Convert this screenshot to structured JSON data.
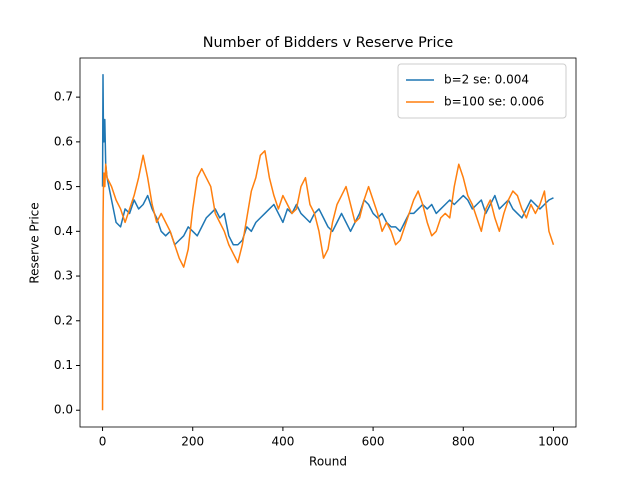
{
  "chart_data": {
    "type": "line",
    "title": "Number of Bidders v Reserve Price",
    "xlabel": "Round",
    "ylabel": "Reserve Price",
    "x": [
      0,
      1,
      2,
      3,
      5,
      7,
      10,
      20,
      30,
      40,
      50,
      60,
      70,
      80,
      90,
      100,
      110,
      120,
      130,
      140,
      150,
      160,
      170,
      180,
      190,
      200,
      210,
      220,
      230,
      240,
      250,
      260,
      270,
      280,
      290,
      300,
      310,
      320,
      330,
      340,
      350,
      360,
      370,
      380,
      390,
      400,
      410,
      420,
      430,
      440,
      450,
      460,
      470,
      480,
      490,
      500,
      510,
      520,
      530,
      540,
      550,
      560,
      570,
      580,
      590,
      600,
      610,
      620,
      630,
      640,
      650,
      660,
      670,
      680,
      690,
      700,
      710,
      720,
      730,
      740,
      750,
      760,
      770,
      780,
      790,
      800,
      810,
      820,
      830,
      840,
      850,
      860,
      870,
      880,
      890,
      900,
      910,
      920,
      930,
      940,
      950,
      960,
      970,
      980,
      990,
      1000
    ],
    "series": [
      {
        "name": "b=2 se: 0.004",
        "color": "#1f77b4",
        "values": [
          0.5,
          0.75,
          0.62,
          0.6,
          0.65,
          0.55,
          0.52,
          0.47,
          0.42,
          0.41,
          0.45,
          0.44,
          0.47,
          0.45,
          0.46,
          0.48,
          0.45,
          0.43,
          0.4,
          0.39,
          0.4,
          0.37,
          0.38,
          0.39,
          0.41,
          0.4,
          0.39,
          0.41,
          0.43,
          0.44,
          0.45,
          0.43,
          0.44,
          0.39,
          0.37,
          0.37,
          0.38,
          0.41,
          0.4,
          0.42,
          0.43,
          0.44,
          0.45,
          0.46,
          0.44,
          0.42,
          0.45,
          0.44,
          0.46,
          0.44,
          0.43,
          0.42,
          0.44,
          0.45,
          0.43,
          0.41,
          0.4,
          0.42,
          0.44,
          0.42,
          0.4,
          0.42,
          0.44,
          0.47,
          0.46,
          0.44,
          0.43,
          0.44,
          0.42,
          0.41,
          0.41,
          0.4,
          0.42,
          0.44,
          0.44,
          0.45,
          0.46,
          0.45,
          0.46,
          0.44,
          0.45,
          0.46,
          0.47,
          0.46,
          0.47,
          0.48,
          0.47,
          0.45,
          0.46,
          0.47,
          0.44,
          0.46,
          0.48,
          0.45,
          0.46,
          0.47,
          0.45,
          0.44,
          0.43,
          0.45,
          0.47,
          0.46,
          0.45,
          0.46,
          0.47,
          0.475
        ]
      },
      {
        "name": "b=100 se: 0.006",
        "color": "#ff7f0e",
        "values": [
          0,
          0.42,
          0.5,
          0.53,
          0.5,
          0.55,
          0.52,
          0.5,
          0.47,
          0.45,
          0.42,
          0.45,
          0.48,
          0.52,
          0.57,
          0.52,
          0.46,
          0.42,
          0.44,
          0.42,
          0.4,
          0.37,
          0.34,
          0.32,
          0.36,
          0.45,
          0.52,
          0.54,
          0.52,
          0.5,
          0.44,
          0.42,
          0.4,
          0.37,
          0.35,
          0.33,
          0.37,
          0.43,
          0.49,
          0.52,
          0.57,
          0.58,
          0.52,
          0.48,
          0.45,
          0.48,
          0.46,
          0.44,
          0.45,
          0.5,
          0.52,
          0.46,
          0.44,
          0.4,
          0.34,
          0.36,
          0.42,
          0.46,
          0.48,
          0.5,
          0.46,
          0.42,
          0.43,
          0.47,
          0.5,
          0.47,
          0.44,
          0.4,
          0.42,
          0.4,
          0.37,
          0.38,
          0.41,
          0.44,
          0.47,
          0.49,
          0.46,
          0.42,
          0.39,
          0.4,
          0.43,
          0.44,
          0.43,
          0.5,
          0.55,
          0.52,
          0.48,
          0.46,
          0.43,
          0.4,
          0.45,
          0.47,
          0.43,
          0.4,
          0.44,
          0.47,
          0.49,
          0.48,
          0.45,
          0.43,
          0.46,
          0.44,
          0.46,
          0.49,
          0.4,
          0.37
        ]
      }
    ],
    "xlim": [
      -50,
      1050
    ],
    "xticks": [
      0,
      200,
      400,
      600,
      800,
      1000
    ],
    "ylim": [
      -0.0375,
      0.7875
    ],
    "yticks": [
      {
        "value": 0,
        "label": "0.0"
      },
      0.1,
      0.2,
      0.3,
      0.4,
      0.5,
      0.6,
      0.7
    ],
    "grid": false,
    "legend": "upper right"
  }
}
